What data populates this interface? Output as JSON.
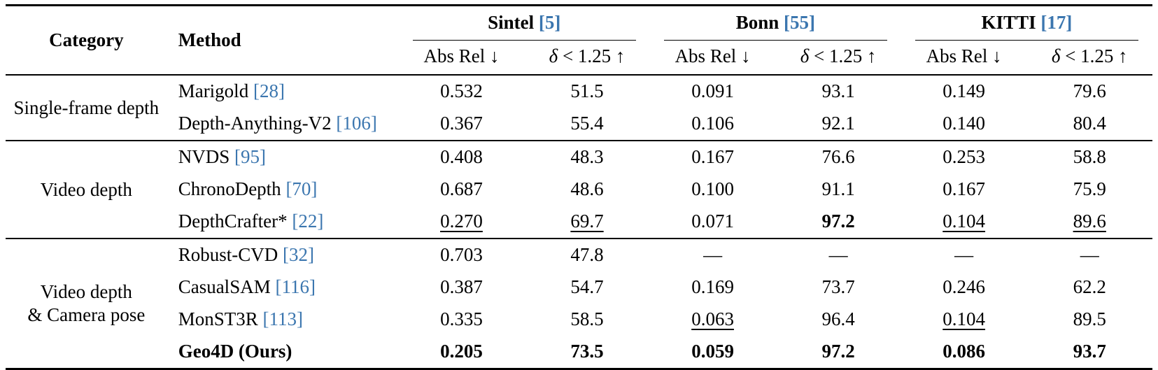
{
  "table": {
    "colors": {
      "citation": "#3b76af",
      "text": "#000000",
      "background": "#ffffff",
      "rule": "#000000"
    },
    "header": {
      "category": "Category",
      "method": "Method",
      "abs_rel": "Abs Rel ↓",
      "delta_sym": "δ",
      "delta_rest": " < 1.25 ↑"
    },
    "datasets": [
      {
        "name": "Sintel",
        "cite": "[5]"
      },
      {
        "name": "Bonn",
        "cite": "[55]"
      },
      {
        "name": "KITTI",
        "cite": "[17]"
      }
    ],
    "groups": [
      {
        "category_lines": [
          "Single-frame depth"
        ],
        "rows": [
          {
            "method": "Marigold",
            "cite": "[28]",
            "bold": false,
            "values": [
              {
                "t": "0.532",
                "s": "n"
              },
              {
                "t": "51.5",
                "s": "n"
              },
              {
                "t": "0.091",
                "s": "n"
              },
              {
                "t": "93.1",
                "s": "n"
              },
              {
                "t": "0.149",
                "s": "n"
              },
              {
                "t": "79.6",
                "s": "n"
              }
            ]
          },
          {
            "method": "Depth-Anything-V2",
            "cite": "[106]",
            "bold": false,
            "values": [
              {
                "t": "0.367",
                "s": "n"
              },
              {
                "t": "55.4",
                "s": "n"
              },
              {
                "t": "0.106",
                "s": "n"
              },
              {
                "t": "92.1",
                "s": "n"
              },
              {
                "t": "0.140",
                "s": "n"
              },
              {
                "t": "80.4",
                "s": "n"
              }
            ]
          }
        ]
      },
      {
        "category_lines": [
          "Video depth"
        ],
        "rows": [
          {
            "method": "NVDS",
            "cite": "[95]",
            "bold": false,
            "values": [
              {
                "t": "0.408",
                "s": "n"
              },
              {
                "t": "48.3",
                "s": "n"
              },
              {
                "t": "0.167",
                "s": "n"
              },
              {
                "t": "76.6",
                "s": "n"
              },
              {
                "t": "0.253",
                "s": "n"
              },
              {
                "t": "58.8",
                "s": "n"
              }
            ]
          },
          {
            "method": "ChronoDepth",
            "cite": "[70]",
            "bold": false,
            "values": [
              {
                "t": "0.687",
                "s": "n"
              },
              {
                "t": "48.6",
                "s": "n"
              },
              {
                "t": "0.100",
                "s": "n"
              },
              {
                "t": "91.1",
                "s": "n"
              },
              {
                "t": "0.167",
                "s": "n"
              },
              {
                "t": "75.9",
                "s": "n"
              }
            ]
          },
          {
            "method": "DepthCrafter*",
            "cite": "[22]",
            "bold": false,
            "values": [
              {
                "t": "0.270",
                "s": "u"
              },
              {
                "t": "69.7",
                "s": "u"
              },
              {
                "t": "0.071",
                "s": "n"
              },
              {
                "t": "97.2",
                "s": "b"
              },
              {
                "t": "0.104",
                "s": "u"
              },
              {
                "t": "89.6",
                "s": "u"
              }
            ]
          }
        ]
      },
      {
        "category_lines": [
          "Video depth",
          "& Camera pose"
        ],
        "rows": [
          {
            "method": "Robust-CVD",
            "cite": "[32]",
            "bold": false,
            "values": [
              {
                "t": "0.703",
                "s": "n"
              },
              {
                "t": "47.8",
                "s": "n"
              },
              {
                "t": "—",
                "s": "n"
              },
              {
                "t": "—",
                "s": "n"
              },
              {
                "t": "—",
                "s": "n"
              },
              {
                "t": "—",
                "s": "n"
              }
            ]
          },
          {
            "method": "CasualSAM",
            "cite": "[116]",
            "bold": false,
            "values": [
              {
                "t": "0.387",
                "s": "n"
              },
              {
                "t": "54.7",
                "s": "n"
              },
              {
                "t": "0.169",
                "s": "n"
              },
              {
                "t": "73.7",
                "s": "n"
              },
              {
                "t": "0.246",
                "s": "n"
              },
              {
                "t": "62.2",
                "s": "n"
              }
            ]
          },
          {
            "method": "MonST3R",
            "cite": "[113]",
            "bold": false,
            "values": [
              {
                "t": "0.335",
                "s": "n"
              },
              {
                "t": "58.5",
                "s": "n"
              },
              {
                "t": "0.063",
                "s": "u"
              },
              {
                "t": "96.4",
                "s": "n"
              },
              {
                "t": "0.104",
                "s": "u"
              },
              {
                "t": "89.5",
                "s": "n"
              }
            ]
          },
          {
            "method": "Geo4D (Ours)",
            "cite": "",
            "bold": true,
            "values": [
              {
                "t": "0.205",
                "s": "b"
              },
              {
                "t": "73.5",
                "s": "b"
              },
              {
                "t": "0.059",
                "s": "b"
              },
              {
                "t": "97.2",
                "s": "b"
              },
              {
                "t": "0.086",
                "s": "b"
              },
              {
                "t": "93.7",
                "s": "b"
              }
            ]
          }
        ]
      }
    ]
  }
}
